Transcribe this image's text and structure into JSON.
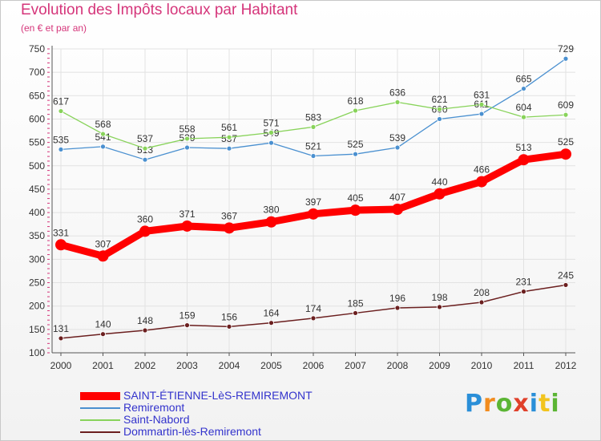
{
  "header": {
    "title": "Evolution des Impôts locaux par Habitant",
    "subtitle": "(en € et par an)"
  },
  "brand": {
    "text": "Proxiti",
    "colors": [
      "#2a8fd8",
      "#f28c1e",
      "#5bb534",
      "#e0402a",
      "#2a8fd8",
      "#f2c41e",
      "#5bb534"
    ]
  },
  "chart_data": {
    "type": "line",
    "x": [
      "2000",
      "2001",
      "2002",
      "2003",
      "2004",
      "2005",
      "2006",
      "2007",
      "2008",
      "2009",
      "2010",
      "2011",
      "2012"
    ],
    "ylim": [
      100,
      750
    ],
    "yticks": [
      100,
      150,
      200,
      250,
      300,
      350,
      400,
      450,
      500,
      550,
      600,
      650,
      700,
      750
    ],
    "grid": true,
    "legend_position": "bottom-left",
    "series": [
      {
        "name": "SAINT-ÉTIENNE-LèS-REMIREMONT",
        "color": "#ff0000",
        "values": [
          331,
          307,
          360,
          371,
          367,
          380,
          397,
          405,
          407,
          440,
          466,
          513,
          525
        ]
      },
      {
        "name": "Remiremont",
        "color": "#4a90d0",
        "values": [
          535,
          541,
          513,
          539,
          537,
          549,
          521,
          525,
          539,
          600,
          611,
          665,
          729
        ]
      },
      {
        "name": "Saint-Nabord",
        "color": "#88d35a",
        "values": [
          617,
          568,
          537,
          558,
          561,
          571,
          583,
          618,
          636,
          621,
          631,
          604,
          609
        ]
      },
      {
        "name": "Dommartin-lès-Remiremont",
        "color": "#6b1f1f",
        "values": [
          131,
          140,
          148,
          159,
          156,
          164,
          174,
          185,
          196,
          198,
          208,
          231,
          245
        ]
      }
    ]
  }
}
